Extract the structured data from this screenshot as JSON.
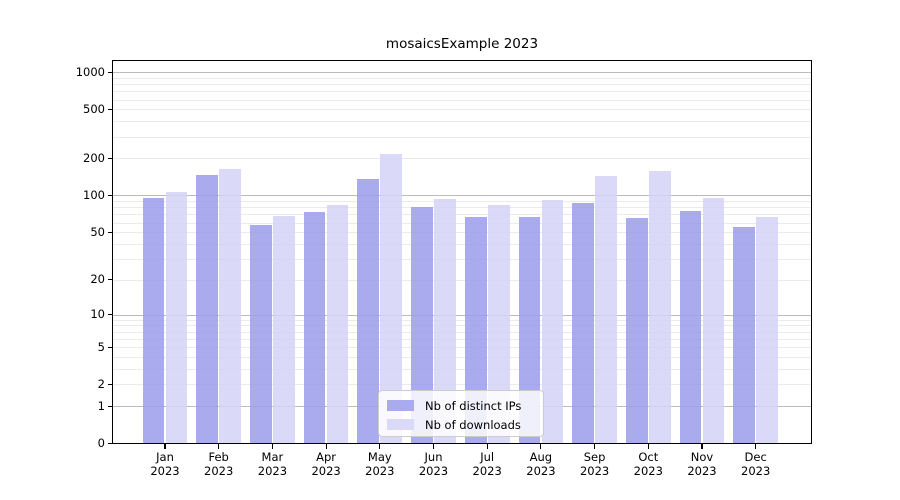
{
  "chart_data": {
    "type": "bar",
    "title": "mosaicsExample 2023",
    "categories": [
      "Jan",
      "Feb",
      "Mar",
      "Apr",
      "May",
      "Jun",
      "Jul",
      "Aug",
      "Sep",
      "Oct",
      "Nov",
      "Dec"
    ],
    "x_year_label": "2023",
    "series": [
      {
        "name": "Nb of distinct IPs",
        "color": "#aaaaee",
        "values": [
          96,
          146,
          57,
          73,
          136,
          80,
          67,
          67,
          86,
          65,
          74,
          55
        ]
      },
      {
        "name": "Nb of downloads",
        "color": "#dadaf8",
        "values": [
          106,
          163,
          68,
          84,
          218,
          93,
          83,
          92,
          144,
          157,
          96,
          67
        ]
      }
    ],
    "yscale": "log(value+1)",
    "y_ticks": [
      0,
      1,
      2,
      5,
      10,
      20,
      50,
      100,
      200,
      500,
      1000
    ],
    "ylim": [
      0,
      1235
    ],
    "grid": "horizontal, log minor and major",
    "legend_position": "lower center inside plot"
  }
}
